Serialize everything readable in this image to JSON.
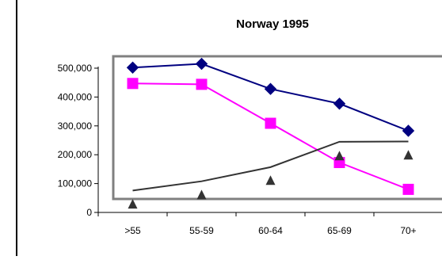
{
  "chart_data": {
    "type": "line",
    "title": "Norway 1995",
    "xlabel": "",
    "ylabel": "",
    "categories": [
      ">55",
      "55-59",
      "60-64",
      "65-69",
      "70+"
    ],
    "ylim": [
      0,
      500000
    ],
    "yticks": [
      0,
      100000,
      200000,
      300000,
      400000,
      500000
    ],
    "ytick_labels": [
      "0",
      "100,000",
      "200,000",
      "300,000",
      "400,000",
      "500,000"
    ],
    "grid": false,
    "legend": "none",
    "series": [
      {
        "values": [
          502000,
          515000,
          428000,
          377000,
          283000
        ],
        "color": "#000080",
        "marker": "diamond",
        "line": true
      },
      {
        "values": [
          447000,
          444000,
          309000,
          173000,
          80000
        ],
        "color": "#ff00ff",
        "marker": "square",
        "line": true
      },
      {
        "values": [
          76000,
          108000,
          157000,
          245000,
          246000
        ],
        "color": "#333333",
        "marker": "none",
        "line": true
      },
      {
        "values": [
          30000,
          62000,
          112000,
          197000,
          200000
        ],
        "color": "#333333",
        "marker": "triangle",
        "line": false
      }
    ]
  }
}
